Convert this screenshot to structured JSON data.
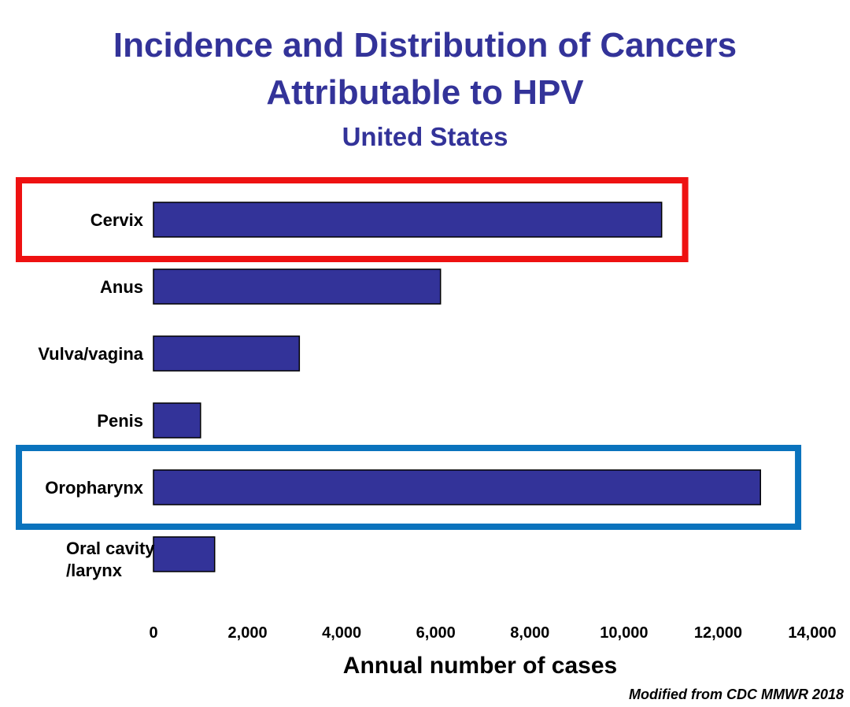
{
  "chart_data": {
    "type": "bar",
    "orientation": "horizontal",
    "title": "Incidence and Distribution of Cancers Attributable to HPV",
    "title_lines": [
      "Incidence and Distribution of Cancers",
      "Attributable to HPV"
    ],
    "subtitle": "United States",
    "categories": [
      "Cervix",
      "Anus",
      "Vulva/vagina",
      "Penis",
      "Oropharynx",
      "Oral cavity /larynx"
    ],
    "category_lines": [
      [
        "Cervix"
      ],
      [
        "Anus"
      ],
      [
        "Vulva/vagina"
      ],
      [
        "Penis"
      ],
      [
        "Oropharynx"
      ],
      [
        "Oral cavity",
        "/larynx"
      ]
    ],
    "values": [
      10800,
      6100,
      3100,
      1000,
      12900,
      1300
    ],
    "xlabel": "Annual number of cases",
    "ylabel": "",
    "xlim": [
      0,
      14000
    ],
    "x_ticks": [
      0,
      2000,
      4000,
      6000,
      8000,
      10000,
      12000,
      14000
    ],
    "x_tick_labels": [
      "0",
      "2,000",
      "4,000",
      "6,000",
      "8,000",
      "10,000",
      "12,000",
      "14,000"
    ],
    "grid": false,
    "highlights": [
      {
        "category": "Cervix",
        "color": "#ee1111"
      },
      {
        "category": "Oropharynx",
        "color": "#0a73bd"
      }
    ],
    "source": "Modified from CDC MMWR 2018"
  },
  "colors": {
    "bar": "#333399",
    "title": "#333399"
  }
}
